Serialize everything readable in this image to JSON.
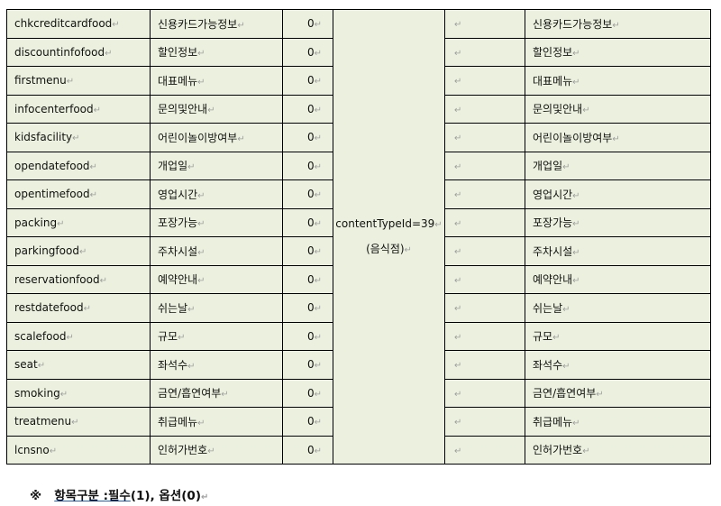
{
  "table": {
    "rows": [
      {
        "name": "chkcreditcardfood",
        "desc": "신용카드가능정보",
        "flag": "0"
      },
      {
        "name": "discountinfofood",
        "desc": "할인정보",
        "flag": "0"
      },
      {
        "name": "firstmenu",
        "desc": "대표메뉴",
        "flag": "0"
      },
      {
        "name": "infocenterfood",
        "desc": "문의및안내",
        "flag": "0"
      },
      {
        "name": "kidsfacility",
        "desc": "어린이놀이방여부",
        "flag": "0"
      },
      {
        "name": "opendatefood",
        "desc": "개업일",
        "flag": "0"
      },
      {
        "name": "opentimefood",
        "desc": "영업시간",
        "flag": "0"
      },
      {
        "name": "packing",
        "desc": "포장가능",
        "flag": "0"
      },
      {
        "name": "parkingfood",
        "desc": "주차시설",
        "flag": "0"
      },
      {
        "name": "reservationfood",
        "desc": "예약안내",
        "flag": "0"
      },
      {
        "name": "restdatefood",
        "desc": "쉬는날",
        "flag": "0"
      },
      {
        "name": "scalefood",
        "desc": "규모",
        "flag": "0"
      },
      {
        "name": "seat",
        "desc": "좌석수",
        "flag": "0"
      },
      {
        "name": "smoking",
        "desc": "금연/흡연여부",
        "flag": "0"
      },
      {
        "name": "treatmenu",
        "desc": "취급메뉴",
        "flag": "0"
      },
      {
        "name": "lcnsno",
        "desc": "인허가번호",
        "flag": "0"
      }
    ],
    "merged_line1": "contentTypeId=39",
    "merged_line2": "(음식점)",
    "return_mark": "↵"
  },
  "note": {
    "symbol": "※",
    "label": "항목구분 :필수",
    "rest": "(1), 옵션(0)"
  },
  "colors": {
    "cell_bg": "#ebf1de",
    "border": "#000000"
  }
}
